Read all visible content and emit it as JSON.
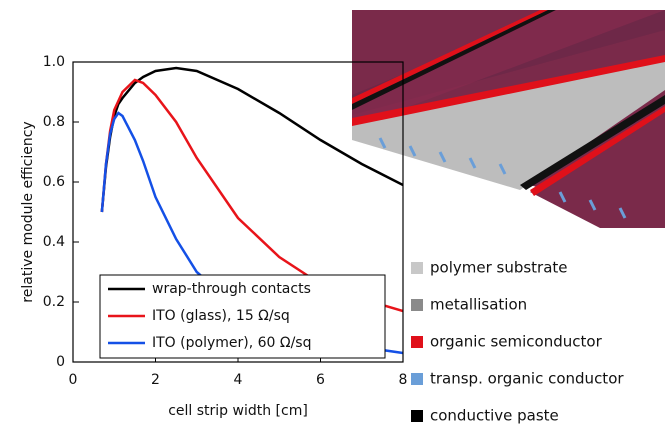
{
  "chart_data": {
    "type": "line",
    "x_label": "cell strip width [cm]",
    "y_label": "relative module efficiency",
    "x": [
      0.7,
      0.8,
      0.9,
      1.0,
      1.1,
      1.2,
      1.5,
      1.7,
      2,
      2.5,
      3,
      4,
      5,
      6,
      7,
      8
    ],
    "series": [
      {
        "name": "wrap-through contacts",
        "color": "#000000",
        "values": [
          0.5,
          0.65,
          0.75,
          0.82,
          0.86,
          0.88,
          0.93,
          0.95,
          0.97,
          0.98,
          0.97,
          0.91,
          0.83,
          0.74,
          0.66,
          0.59
        ]
      },
      {
        "name": "ITO (glass), 15 Ω/sq",
        "color": "#e8141a",
        "values": [
          0.5,
          0.66,
          0.77,
          0.84,
          0.87,
          0.9,
          0.94,
          0.93,
          0.89,
          0.8,
          0.68,
          0.48,
          0.35,
          0.26,
          0.21,
          0.17
        ]
      },
      {
        "name": "ITO (polymer), 60 Ω/sq",
        "color": "#1450e6",
        "values": [
          0.5,
          0.66,
          0.76,
          0.81,
          0.83,
          0.82,
          0.74,
          0.67,
          0.55,
          0.41,
          0.3,
          0.18,
          0.11,
          0.07,
          0.05,
          0.03
        ]
      }
    ],
    "xlim": [
      0,
      8
    ],
    "xticks": [
      0,
      2,
      4,
      6,
      8
    ],
    "ylim": [
      0,
      1
    ],
    "yticks": [
      0,
      0.2,
      0.4,
      0.6,
      0.8,
      {
        "value": 1,
        "label": "1.0"
      }
    ],
    "legend": "lower-left"
  },
  "layer_legend": [
    {
      "label": "polymer substrate",
      "color": "#c8c8c8"
    },
    {
      "label": "metallisation",
      "color": "#8a8a8a"
    },
    {
      "label": "organic semiconductor",
      "color": "#e0101a"
    },
    {
      "label": "transp. organic conductor",
      "color": "#6a9ed8"
    },
    {
      "label": "conductive paste",
      "color": "#000000"
    }
  ]
}
